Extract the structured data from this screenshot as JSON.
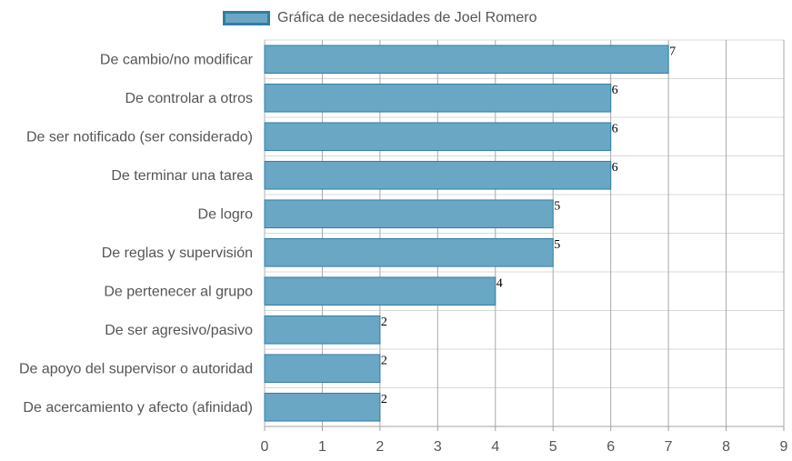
{
  "chart_data": {
    "type": "bar",
    "orientation": "horizontal",
    "title": "",
    "xlabel": "",
    "ylabel": "",
    "categories": [
      "De cambio/no modificar",
      "De controlar a otros",
      "De ser notificado (ser considerado)",
      "De terminar una tarea",
      "De logro",
      "De reglas y supervisión",
      "De pertenecer al grupo",
      "De ser agresivo/pasivo",
      "De apoyo del supervisor o autoridad",
      "De acercamiento y afecto (afinidad)"
    ],
    "series": [
      {
        "name": "Gráfica de necesidades de Joel Romero",
        "values": [
          7,
          6,
          6,
          6,
          5,
          5,
          4,
          2,
          2,
          2
        ]
      }
    ],
    "xlim": [
      0,
      9
    ],
    "xticks": [
      "0",
      "1",
      "2",
      "3",
      "4",
      "5",
      "6",
      "7",
      "8",
      "9"
    ],
    "grid": true,
    "legend_position": "top",
    "colors": {
      "bar_fill": "#6aa7c5",
      "bar_stroke": "#2f7ea5",
      "grid": "#d8d8d8",
      "major_grid": "#a9a9a9"
    }
  }
}
